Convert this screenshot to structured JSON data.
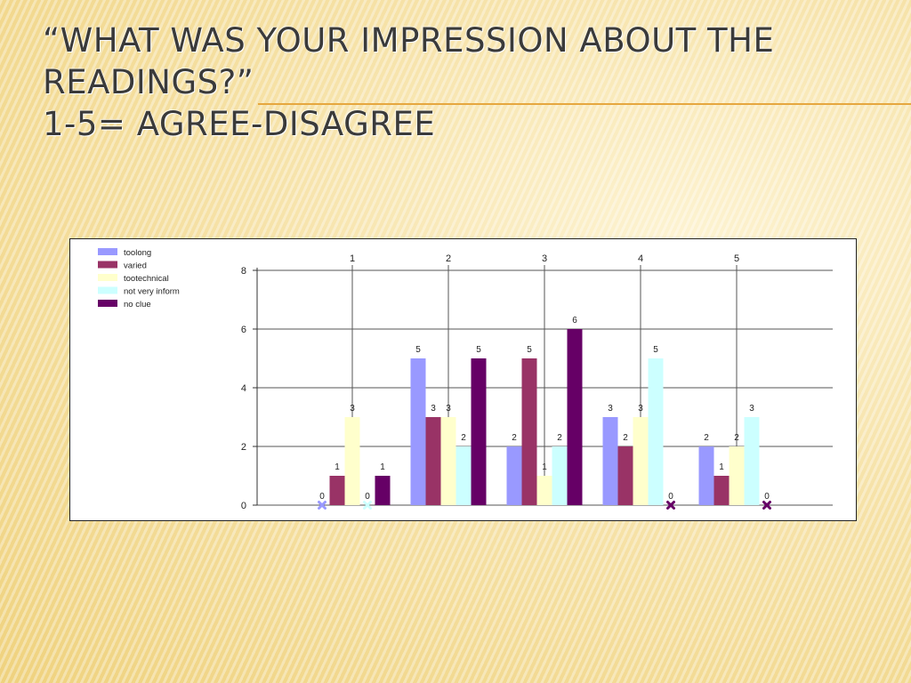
{
  "slide": {
    "title_line1": "“What was your impression about the",
    "title_line2": "readings?”",
    "title_line3": "1-5= agree-disagree"
  },
  "chart_data": {
    "type": "bar",
    "categories": [
      "1",
      "2",
      "3",
      "4",
      "5"
    ],
    "series": [
      {
        "name": "toolong",
        "values": [
          0,
          5,
          2,
          3,
          2
        ],
        "color": "#9999ff"
      },
      {
        "name": "varied",
        "values": [
          1,
          3,
          5,
          2,
          1
        ],
        "color": "#993366"
      },
      {
        "name": "tootechnical",
        "values": [
          3,
          3,
          1,
          3,
          2
        ],
        "color": "#ffffcc"
      },
      {
        "name": "not very inform",
        "values": [
          0,
          2,
          2,
          5,
          3
        ],
        "color": "#ccffff"
      },
      {
        "name": "no clue",
        "values": [
          1,
          5,
          6,
          0,
          0
        ],
        "color": "#660066"
      }
    ],
    "ylim": [
      0,
      8
    ],
    "yticks": [
      0,
      2,
      4,
      6,
      8
    ],
    "legend_position": "top-left",
    "grid": true
  }
}
